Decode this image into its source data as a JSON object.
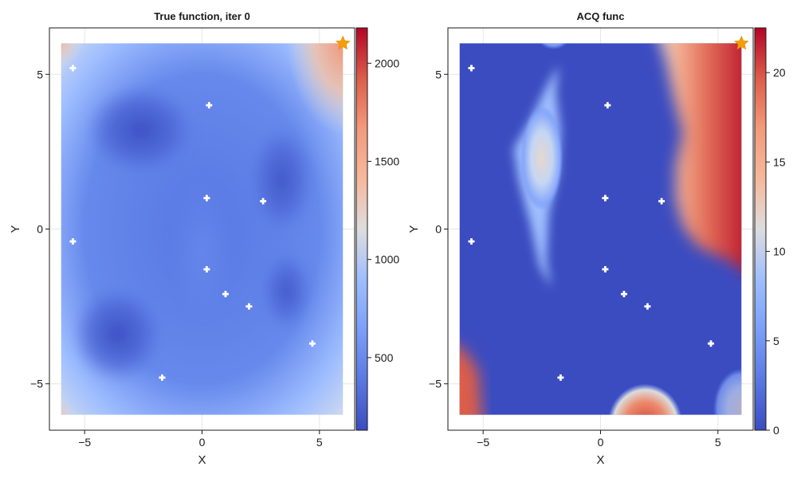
{
  "chart_data": [
    {
      "type": "heatmap",
      "title": "True function, iter 0",
      "xlabel": "X",
      "ylabel": "Y",
      "xlim": [
        -6.5,
        6.5
      ],
      "ylim": [
        -6.5,
        6.5
      ],
      "data_extent": [
        -6,
        6
      ],
      "xticks": [
        -5,
        0,
        5
      ],
      "yticks": [
        -5,
        0,
        5
      ],
      "xtick_labels": [
        "−5",
        "0",
        "5"
      ],
      "ytick_labels": [
        "−5",
        "0",
        "5"
      ],
      "grid": true,
      "colormap": "coolwarm",
      "colorbar": {
        "min": 130,
        "max": 2180,
        "ticks": [
          500,
          1000,
          1500,
          2000
        ],
        "tick_labels": [
          "500",
          "1000",
          "1500",
          "2000"
        ]
      },
      "samples": [
        [
          -5.5,
          5.2
        ],
        [
          0.3,
          4.0
        ],
        [
          0.2,
          1.0
        ],
        [
          2.6,
          0.9
        ],
        [
          -5.5,
          -0.4
        ],
        [
          0.2,
          -1.3
        ],
        [
          1.0,
          -2.1
        ],
        [
          2.0,
          -2.5
        ],
        [
          4.7,
          -3.7
        ],
        [
          -1.7,
          -4.8
        ]
      ],
      "best": [
        6.0,
        6.0
      ]
    },
    {
      "type": "heatmap",
      "title": "ACQ func",
      "xlabel": "X",
      "ylabel": "Y",
      "xlim": [
        -6.5,
        6.5
      ],
      "ylim": [
        -6.5,
        6.5
      ],
      "data_extent": [
        -6,
        6
      ],
      "xticks": [
        -5,
        0,
        5
      ],
      "yticks": [
        -5,
        0,
        5
      ],
      "xtick_labels": [
        "−5",
        "0",
        "5"
      ],
      "ytick_labels": [
        "−5",
        "0",
        "5"
      ],
      "grid": true,
      "colormap": "coolwarm",
      "colorbar": {
        "min": 0,
        "max": 22.5,
        "ticks": [
          0,
          5,
          10,
          15,
          20
        ],
        "tick_labels": [
          "0",
          "5",
          "10",
          "15",
          "20"
        ]
      },
      "samples": [
        [
          -5.5,
          5.2
        ],
        [
          0.3,
          4.0
        ],
        [
          0.2,
          1.0
        ],
        [
          2.6,
          0.9
        ],
        [
          -5.5,
          -0.4
        ],
        [
          0.2,
          -1.3
        ],
        [
          1.0,
          -2.1
        ],
        [
          2.0,
          -2.5
        ],
        [
          4.7,
          -3.7
        ],
        [
          -1.7,
          -4.8
        ]
      ],
      "best": [
        6.0,
        6.0
      ]
    }
  ],
  "colors": {
    "cool": "#3b4cc0",
    "neutral": "#dddddd",
    "warm": "#b40426",
    "sample_marker": "#ffffff",
    "best_marker": "#f5a000"
  }
}
